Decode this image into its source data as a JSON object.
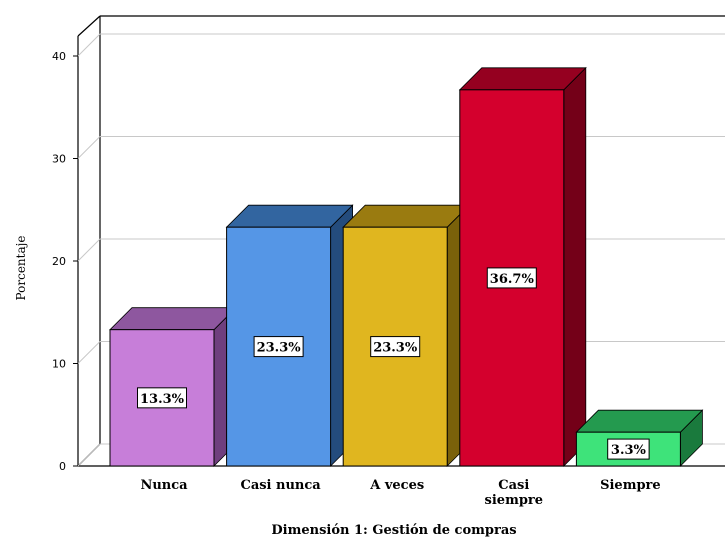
{
  "chart_data": {
    "type": "bar",
    "title": "",
    "xlabel": "Dimensión 1: Gestión de compras",
    "ylabel": "Porcentaje",
    "ylim": [
      0,
      40
    ],
    "yticks": [
      0,
      10,
      20,
      30,
      40
    ],
    "grid": true,
    "legend": "none",
    "three_d": true,
    "categories": [
      [
        "Nunca"
      ],
      [
        "Casi nunca"
      ],
      [
        "A veces"
      ],
      [
        "Casi",
        "siempre"
      ],
      [
        "Siempre"
      ]
    ],
    "values": [
      13.3,
      23.3,
      23.3,
      36.7,
      3.3
    ],
    "data_labels": [
      "13.3%",
      "23.3%",
      "23.3%",
      "36.7%",
      "3.3%"
    ],
    "colors": [
      {
        "front": "#c77ed9",
        "top": "#8e579f",
        "side": "#6f3f7e"
      },
      {
        "front": "#5596e6",
        "top": "#3265a0",
        "side": "#244c7d"
      },
      {
        "front": "#e0b61f",
        "top": "#9a7b10",
        "side": "#7a610a"
      },
      {
        "front": "#d4002d",
        "top": "#950020",
        "side": "#740018"
      },
      {
        "front": "#3ee37a",
        "top": "#249a4f",
        "side": "#1a7a3d"
      }
    ]
  }
}
